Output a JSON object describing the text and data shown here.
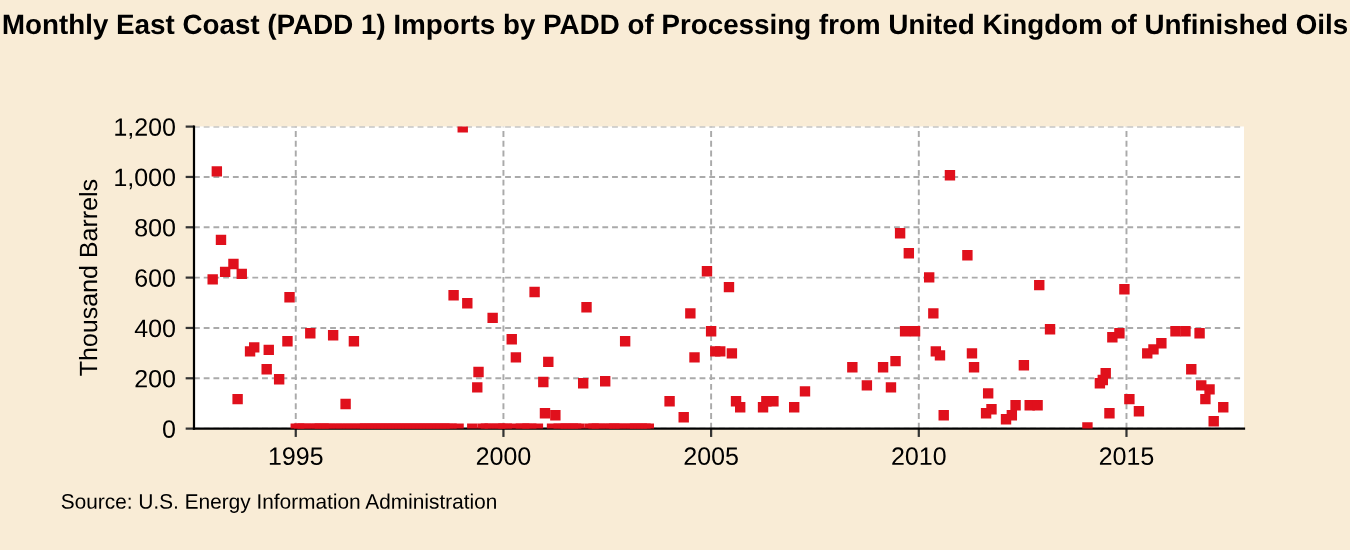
{
  "chart_data": {
    "type": "scatter",
    "title": "Monthly East Coast (PADD 1) Imports by PADD of Processing from United Kingdom of Unfinished Oils",
    "ylabel": "Thousand Barrels",
    "annotations": [
      "Source: U.S. Energy Information Administration"
    ],
    "xlim": [
      1992.55,
      2017.83
    ],
    "xticks": [
      1995,
      2000,
      2005,
      2010,
      2015
    ],
    "ylim": [
      0,
      1200
    ],
    "yticks": [
      {
        "value": 0,
        "label": "0"
      },
      {
        "value": 200,
        "label": "200"
      },
      {
        "value": 400,
        "label": "400"
      },
      {
        "value": 600,
        "label": "600"
      },
      {
        "value": 800,
        "label": "800"
      },
      {
        "value": 1000,
        "label": "1,000"
      },
      {
        "value": 1200,
        "label": "1,200"
      }
    ],
    "grid": true,
    "marker": "square",
    "legend": false,
    "series": [
      {
        "color": "#e0101c",
        "x": [
          1993.0,
          1993.1,
          1993.2,
          1993.3,
          1993.5,
          1993.7,
          1993.6,
          1993.9,
          1994.0,
          1994.3,
          1994.35,
          1994.6,
          1994.8,
          1994.85,
          1995.35,
          1995.9,
          1996.2,
          1996.4,
          1998.8,
          1999.02,
          1999.13,
          1999.4,
          1999.37,
          1999.74,
          2000.2,
          2000.3,
          2000.75,
          2000.96,
          2001.08,
          2001.0,
          2001.25,
          2001.92,
          2002.0,
          2002.45,
          2002.93,
          2004.0,
          2004.34,
          2004.5,
          2004.6,
          2004.9,
          2005.0,
          2005.1,
          2005.22,
          2005.43,
          2005.5,
          2005.6,
          2005.7,
          2006.25,
          2006.33,
          2006.5,
          2007.0,
          2007.26,
          2008.4,
          2008.75,
          2009.14,
          2009.33,
          2009.44,
          2009.55,
          2009.76,
          2009.67,
          2009.91,
          2010.25,
          2010.35,
          2010.41,
          2010.51,
          2010.6,
          2010.75,
          2011.17,
          2011.28,
          2011.33,
          2011.67,
          2011.62,
          2011.75,
          2012.1,
          2012.24,
          2012.33,
          2012.53,
          2012.67,
          2012.86,
          2012.9,
          2013.16,
          2014.06,
          2014.36,
          2014.43,
          2014.5,
          2014.59,
          2014.66,
          2014.83,
          2014.95,
          2015.07,
          2015.3,
          2015.5,
          2015.65,
          2015.84,
          2016.18,
          2016.42,
          2016.56,
          2016.76,
          2016.8,
          2016.9,
          2017.0,
          2017.1,
          2017.33,
          1995.0,
          1995.08,
          1995.17,
          1995.25,
          1995.42,
          1995.5,
          1995.58,
          1995.67,
          1995.75,
          1995.83,
          1996.0,
          1996.08,
          1996.25,
          1996.33,
          1996.5,
          1996.58,
          1996.67,
          1996.75,
          1996.83,
          1996.92,
          1997.0,
          1997.08,
          1997.17,
          1997.25,
          1997.33,
          1997.42,
          1997.5,
          1997.58,
          1997.67,
          1997.75,
          1997.83,
          1997.92,
          1998.0,
          1998.08,
          1998.17,
          1998.25,
          1998.33,
          1998.42,
          1998.5,
          1998.58,
          1998.67,
          1998.75,
          1998.92,
          1999.25,
          1999.5,
          1999.58,
          1999.67,
          1999.83,
          1999.92,
          2000.0,
          2000.08,
          2000.25,
          2000.42,
          2000.5,
          2000.58,
          2000.67,
          2000.83,
          2001.17,
          2001.33,
          2001.42,
          2001.5,
          2001.58,
          2001.67,
          2001.75,
          2001.83,
          2002.08,
          2002.17,
          2002.25,
          2002.33,
          2002.5,
          2002.58,
          2002.67,
          2002.75,
          2002.83,
          2003.0,
          2003.08,
          2003.17,
          2003.25,
          2003.33,
          2003.42,
          2003.5
        ],
        "values": [
          593,
          1022,
          750,
          623,
          654,
          615,
          117,
          307,
          323,
          236,
          313,
          196,
          347,
          522,
          379,
          371,
          98,
          347,
          530,
          1197,
          498,
          225,
          164,
          440,
          355,
          283,
          543,
          185,
          265,
          61,
          53,
          180,
          482,
          188,
          347,
          109,
          45,
          458,
          283,
          625,
          387,
          307,
          307,
          562,
          299,
          109,
          85,
          85,
          109,
          109,
          85,
          148,
          244,
          172,
          244,
          164,
          268,
          776,
          697,
          387,
          387,
          601,
          458,
          307,
          291,
          53,
          1007,
          689,
          299,
          244,
          140,
          61,
          77,
          37,
          53,
          93,
          252,
          93,
          93,
          570,
          395,
          5,
          180,
          193,
          220,
          61,
          363,
          379,
          554,
          117,
          69,
          299,
          315,
          339,
          387,
          387,
          236,
          379,
          172,
          117,
          156,
          29,
          85,
          0,
          0,
          0,
          0,
          0,
          0,
          0,
          0,
          0,
          0,
          0,
          0,
          0,
          0,
          0,
          0,
          0,
          0,
          0,
          0,
          0,
          0,
          0,
          0,
          0,
          0,
          0,
          0,
          0,
          0,
          0,
          0,
          0,
          0,
          0,
          0,
          0,
          0,
          0,
          0,
          0,
          0,
          0,
          0,
          0,
          0,
          0,
          0,
          0,
          0,
          0,
          0,
          0,
          0,
          0,
          0,
          0,
          0,
          0,
          0,
          0,
          0,
          0,
          0,
          0,
          0,
          0,
          0,
          0,
          0,
          0,
          0,
          0,
          0,
          0,
          0,
          0,
          0,
          0,
          0,
          0
        ]
      }
    ]
  }
}
